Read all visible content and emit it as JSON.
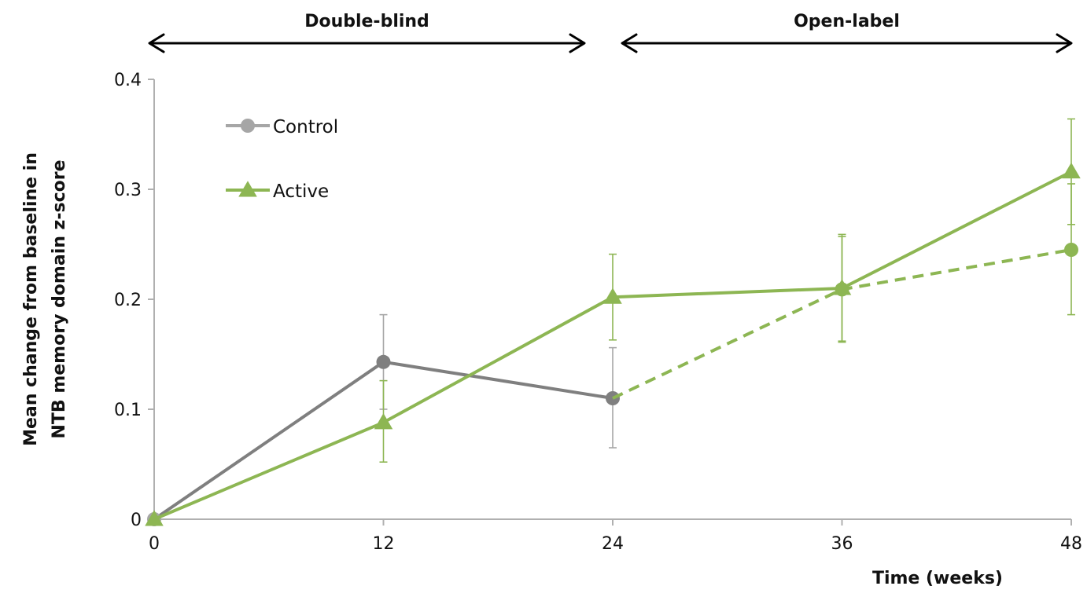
{
  "chart_data": {
    "type": "line",
    "title": "",
    "xlabel": "Time (weeks)",
    "ylabel_lines": [
      "Mean change from baseline in",
      "NTB memory domain z-score"
    ],
    "x": [
      0,
      12,
      24,
      36,
      48
    ],
    "x_tick_labels": [
      "0",
      "12",
      "24",
      "36",
      "48"
    ],
    "xlim": [
      0,
      48
    ],
    "ylim": [
      0,
      0.4
    ],
    "y_ticks": [
      0,
      0.1,
      0.2,
      0.3,
      0.4
    ],
    "y_tick_labels": [
      "0",
      "0.1",
      "0.2",
      "0.3",
      "0.4"
    ],
    "grid": false,
    "legend_position": "top-left",
    "colors": {
      "control": "#7f7f7f",
      "active": "#8db653",
      "axis": "#b0b0b0",
      "arrow": "#000000"
    },
    "series": [
      {
        "name": "Control",
        "marker": "circle",
        "points": [
          {
            "x": 0,
            "y": 0.0
          },
          {
            "x": 12,
            "y": 0.143,
            "err_low": 0.1,
            "err_high": 0.186
          },
          {
            "x": 24,
            "y": 0.11,
            "err_low": 0.065,
            "err_high": 0.156
          }
        ]
      },
      {
        "name": "Active",
        "marker": "triangle",
        "points": [
          {
            "x": 0,
            "y": 0.0
          },
          {
            "x": 12,
            "y": 0.088,
            "err_low": 0.052,
            "err_high": 0.126
          },
          {
            "x": 24,
            "y": 0.202,
            "err_low": 0.163,
            "err_high": 0.241
          },
          {
            "x": 36,
            "y": 0.21,
            "err_low": 0.162,
            "err_high": 0.257
          },
          {
            "x": 48,
            "y": 0.316,
            "err_low": 0.268,
            "err_high": 0.364
          }
        ]
      },
      {
        "legend": false,
        "marker": "circle",
        "style": "dashed",
        "color_key": "active",
        "points": [
          {
            "x": 24,
            "y": 0.11
          },
          {
            "x": 36,
            "y": 0.209,
            "err_low": 0.161,
            "err_high": 0.259
          },
          {
            "x": 48,
            "y": 0.245,
            "err_low": 0.186,
            "err_high": 0.305
          }
        ]
      }
    ],
    "phases": [
      {
        "label": "Double-blind",
        "x_start": 0,
        "x_end": 24
      },
      {
        "label": "Open-label",
        "x_start": 24,
        "x_end": 48
      }
    ]
  }
}
